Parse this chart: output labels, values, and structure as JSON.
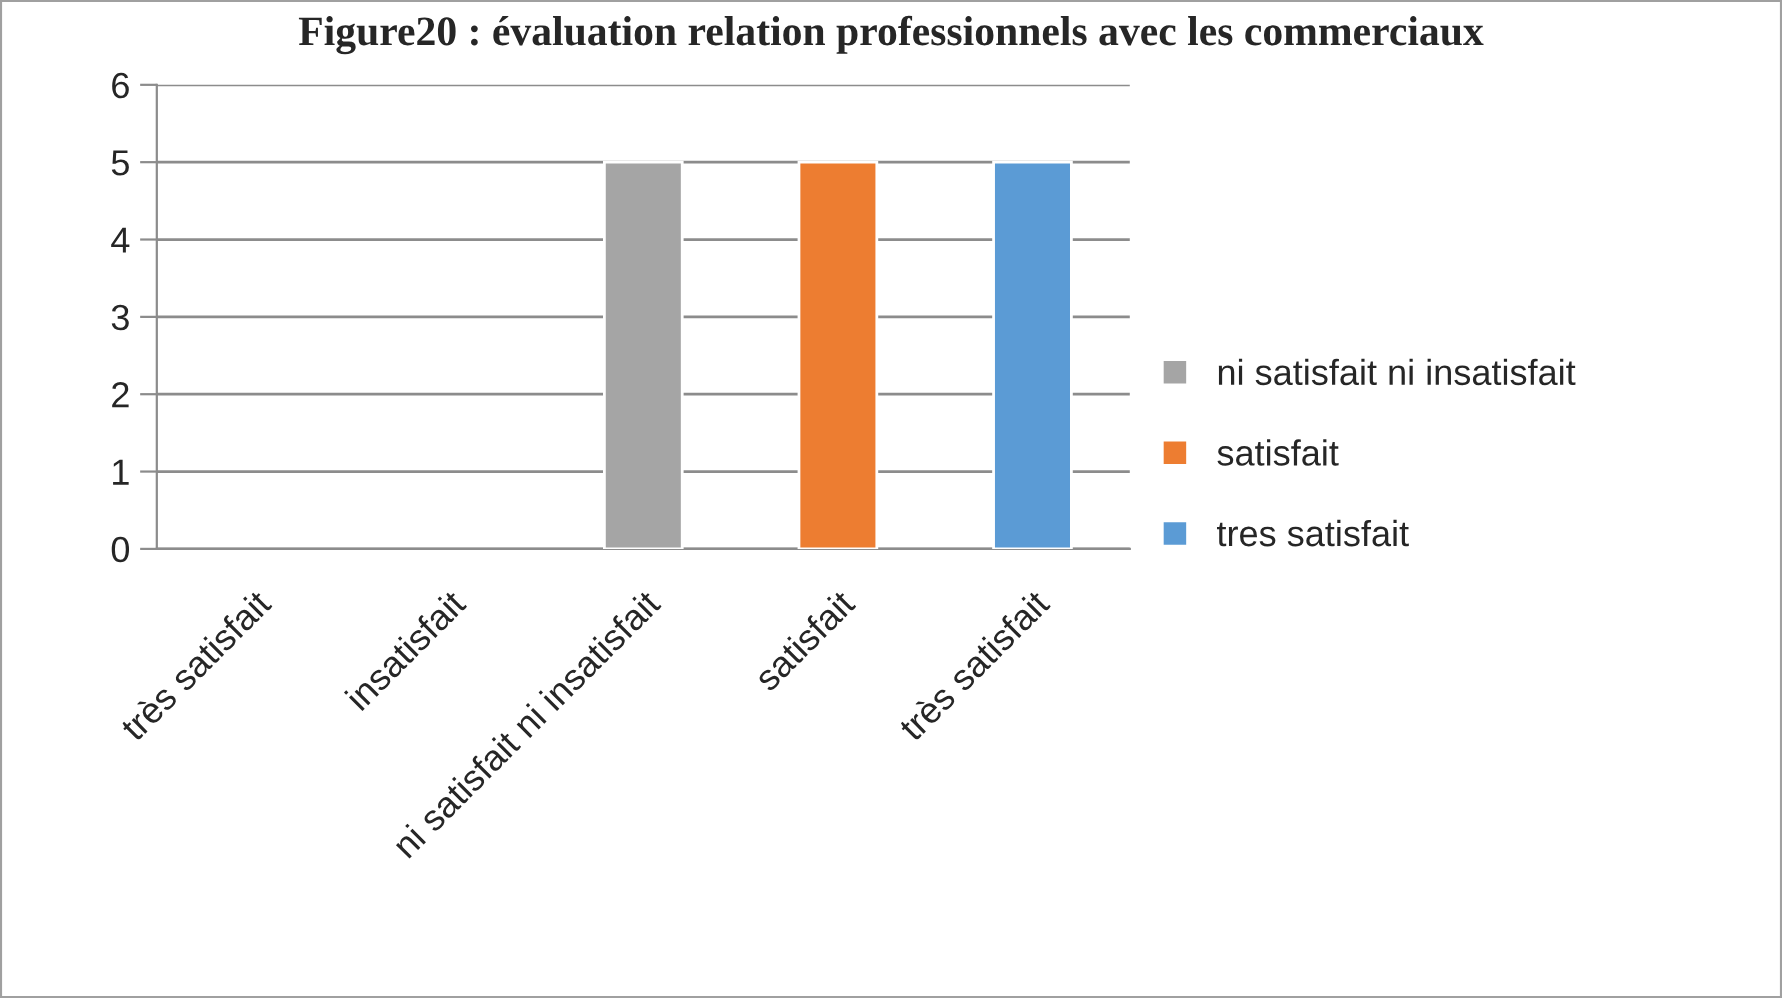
{
  "chart_data": {
    "type": "bar",
    "title": "Figure20 : évaluation relation professionnels avec les commerciaux",
    "categories": [
      "très satisfait",
      "insatisfait",
      "ni satisfait ni insatisfait",
      "satisfait",
      "très satisfait"
    ],
    "series": [
      {
        "name": "ni satisfait ni insatisfait",
        "color": "#a5a5a5",
        "values": [
          null,
          null,
          5,
          null,
          null
        ]
      },
      {
        "name": "satisfait",
        "color": "#ed7d31",
        "values": [
          null,
          null,
          null,
          5,
          null
        ]
      },
      {
        "name": "tres satisfait",
        "color": "#5b9bd5",
        "values": [
          null,
          null,
          null,
          null,
          5
        ]
      }
    ],
    "ylim": [
      0,
      6
    ],
    "yticks": [
      0,
      1,
      2,
      3,
      4,
      5,
      6
    ],
    "grid": "y",
    "legend": "right"
  }
}
